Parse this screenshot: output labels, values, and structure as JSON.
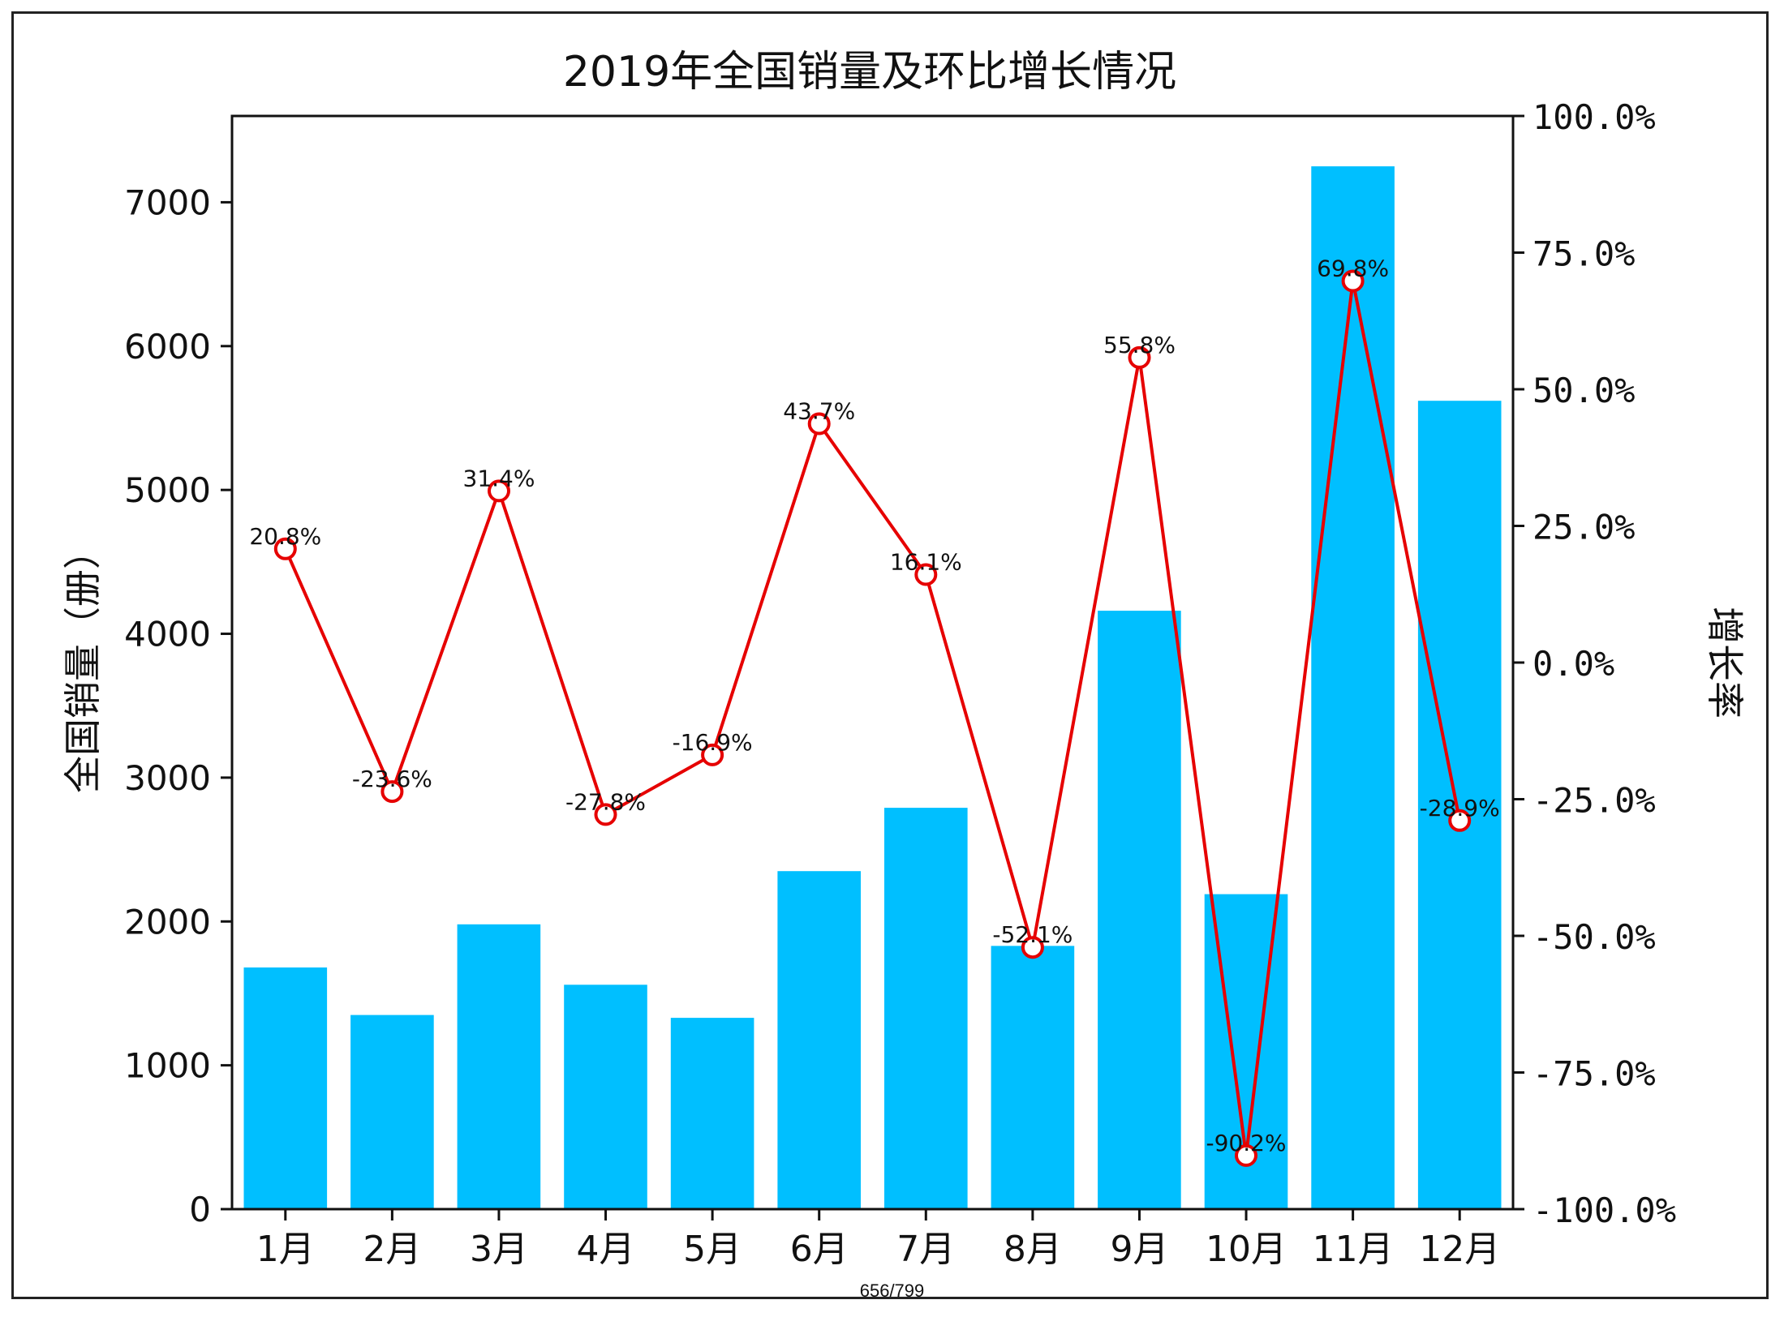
{
  "chart_data": {
    "type": "bar+line",
    "title": "2019年全国销量及环比增长情况",
    "categories": [
      "1月",
      "2月",
      "3月",
      "4月",
      "5月",
      "6月",
      "7月",
      "8月",
      "9月",
      "10月",
      "11月",
      "12月"
    ],
    "bar_series": {
      "values": [
        1680,
        1350,
        1980,
        1560,
        1330,
        2350,
        2790,
        1830,
        4160,
        2190,
        7250,
        5620
      ],
      "color": "#00bfff"
    },
    "line_series": {
      "values": [
        20.8,
        -23.6,
        31.4,
        -27.8,
        -16.9,
        43.7,
        16.1,
        -52.1,
        55.8,
        -90.2,
        69.8,
        -28.9
      ],
      "labels": [
        "20.8%",
        "-23.6%",
        "31.4%",
        "-27.8%",
        "-16.9%",
        "43.7%",
        "16.1%",
        "-52.1%",
        "55.8%",
        "-90.2%",
        "69.8%",
        "-28.9%"
      ],
      "color": "#e60000"
    },
    "ylabel_left": "全国销量（册）",
    "ylabel_right": "增长率",
    "ylim_left": [
      0,
      7600
    ],
    "yticks_left": [
      "0",
      "1000",
      "2000",
      "3000",
      "4000",
      "5000",
      "6000",
      "7000"
    ],
    "ytick_values_left": [
      0,
      1000,
      2000,
      3000,
      4000,
      5000,
      6000,
      7000
    ],
    "ylim_right": [
      -100,
      100
    ],
    "yticks_right": [
      "-100.0%",
      "-75.0%",
      "-50.0%",
      "-25.0%",
      "0.0%",
      "25.0%",
      "50.0%",
      "75.0%",
      "100.0%"
    ],
    "ytick_values_right": [
      -100,
      -75,
      -50,
      -25,
      0,
      25,
      50,
      75,
      100
    ],
    "grid": false
  },
  "page": {
    "footer": "656/799"
  }
}
